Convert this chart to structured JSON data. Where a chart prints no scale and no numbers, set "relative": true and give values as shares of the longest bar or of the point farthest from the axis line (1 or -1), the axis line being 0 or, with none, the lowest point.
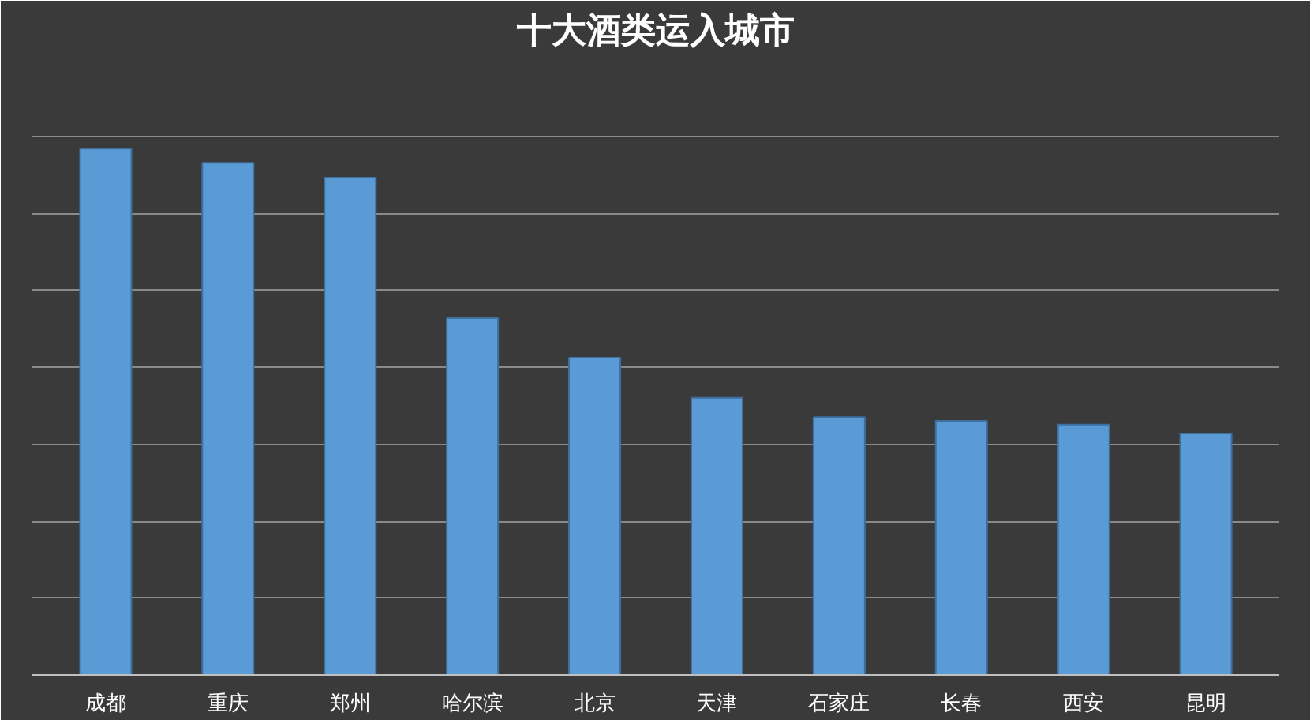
{
  "chart_data": {
    "type": "bar",
    "title": "十大酒类运入城市",
    "relative": true,
    "grid": "y",
    "categories": [
      "成都",
      "重庆",
      "郑州",
      "哈尔滨",
      "北京",
      "天津",
      "石家庄",
      "长春",
      "西安",
      "昆明"
    ],
    "values": [
      1,
      0.973,
      0.945,
      0.678,
      0.603,
      0.527,
      0.49,
      0.483,
      0.476,
      0.459
    ],
    "color": "#5b9bd5"
  }
}
